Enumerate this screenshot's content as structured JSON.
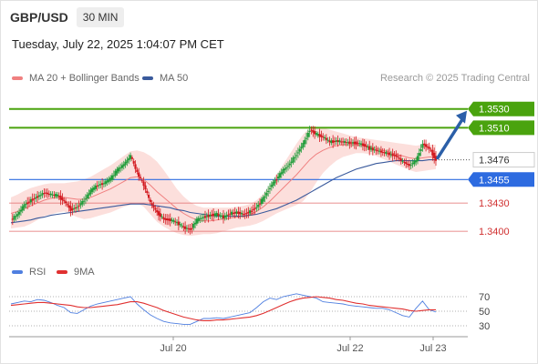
{
  "header": {
    "symbol": "GBP/USD",
    "timeframe": "30 MIN",
    "datetime": "Tuesday, July 22, 2025 1:04:07 PM CET",
    "copyright": "Research © 2025 Trading Central"
  },
  "legend": {
    "ma20_label": "MA 20 + Bollinger Bands",
    "ma50_label": "MA 50",
    "rsi_label": "RSI",
    "nine_ma_label": "9MA"
  },
  "colors": {
    "bullish": "#1f9d3a",
    "bearish": "#d2191f",
    "ma20": "#f08080",
    "bollinger_fill": "#fcd9d6",
    "ma50": "#3a5a9c",
    "resistance": "#4aa30e",
    "support_blue": "#2d6be0",
    "support_red": "#e06a6a",
    "arrow": "#2b5fa8",
    "rsi": "#4f7fe0",
    "rsi_ma": "#e03030"
  },
  "chart_data": [
    {
      "type": "candlestick",
      "title": "GBP/USD 30 MIN",
      "ylim": [
        1.3375,
        1.3552
      ],
      "x_ticks": [
        "Jul 20",
        "Jul 22",
        "Jul 23"
      ],
      "levels": [
        {
          "value": 1.353,
          "label": "1.3530",
          "style": "resistance"
        },
        {
          "value": 1.351,
          "label": "1.3510",
          "style": "resistance"
        },
        {
          "value": 1.3476,
          "label": "1.3476",
          "style": "current"
        },
        {
          "value": 1.3455,
          "label": "1.3455",
          "style": "support_blue"
        },
        {
          "value": 1.343,
          "label": "1.3430",
          "style": "support_red"
        },
        {
          "value": 1.34,
          "label": "1.3400",
          "style": "support_red"
        }
      ],
      "price_path": [
        1.3412,
        1.3418,
        1.3428,
        1.3433,
        1.3437,
        1.3441,
        1.3439,
        1.3438,
        1.3432,
        1.3423,
        1.3426,
        1.3433,
        1.3443,
        1.3449,
        1.3451,
        1.3456,
        1.3465,
        1.3471,
        1.348,
        1.3462,
        1.3449,
        1.343,
        1.342,
        1.3413,
        1.3412,
        1.3409,
        1.3404,
        1.3402,
        1.3412,
        1.3415,
        1.3417,
        1.3418,
        1.3415,
        1.3419,
        1.342,
        1.3418,
        1.3421,
        1.3426,
        1.3435,
        1.3447,
        1.3456,
        1.3465,
        1.3472,
        1.3482,
        1.3493,
        1.3508,
        1.3503,
        1.35,
        1.3495,
        1.3496,
        1.3495,
        1.3494,
        1.3494,
        1.3492,
        1.3488,
        1.3486,
        1.3484,
        1.3482,
        1.348,
        1.3474,
        1.347,
        1.3475,
        1.3493,
        1.3488,
        1.3476
      ],
      "ma20": [
        1.3419,
        1.3421,
        1.3424,
        1.3427,
        1.343,
        1.3433,
        1.3435,
        1.3436,
        1.3436,
        1.3435,
        1.3434,
        1.3434,
        1.3436,
        1.3439,
        1.3442,
        1.3445,
        1.3449,
        1.3453,
        1.3457,
        1.3458,
        1.3455,
        1.3449,
        1.3442,
        1.3436,
        1.343,
        1.3424,
        1.3419,
        1.3415,
        1.3412,
        1.3411,
        1.3411,
        1.3412,
        1.3413,
        1.3414,
        1.3415,
        1.3416,
        1.3418,
        1.3421,
        1.3426,
        1.3432,
        1.3439,
        1.3446,
        1.3453,
        1.346,
        1.3468,
        1.3476,
        1.3482,
        1.3486,
        1.3489,
        1.3491,
        1.3492,
        1.3492,
        1.3492,
        1.3491,
        1.349,
        1.3488,
        1.3486,
        1.3484,
        1.3482,
        1.348,
        1.3478,
        1.3477,
        1.3478,
        1.3479,
        1.3479
      ],
      "bollinger_upper": [
        1.3436,
        1.3439,
        1.3443,
        1.3446,
        1.3448,
        1.345,
        1.3451,
        1.3451,
        1.3451,
        1.3452,
        1.3453,
        1.3455,
        1.3458,
        1.3462,
        1.3466,
        1.347,
        1.3475,
        1.348,
        1.3485,
        1.3486,
        1.3484,
        1.348,
        1.3474,
        1.3465,
        1.3455,
        1.3445,
        1.3437,
        1.3431,
        1.3427,
        1.3425,
        1.3425,
        1.3425,
        1.3425,
        1.3425,
        1.3426,
        1.3427,
        1.3429,
        1.3433,
        1.344,
        1.3449,
        1.346,
        1.3471,
        1.3482,
        1.3493,
        1.3503,
        1.351,
        1.3511,
        1.351,
        1.3508,
        1.3506,
        1.3504,
        1.3502,
        1.35,
        1.3499,
        1.3498,
        1.3497,
        1.3496,
        1.3495,
        1.3494,
        1.3493,
        1.3492,
        1.3491,
        1.3492,
        1.3492,
        1.3492
      ],
      "bollinger_lower": [
        1.3403,
        1.3404,
        1.3405,
        1.3408,
        1.3412,
        1.3416,
        1.3418,
        1.342,
        1.3421,
        1.3418,
        1.3415,
        1.3413,
        1.3414,
        1.3416,
        1.3418,
        1.342,
        1.3423,
        1.3426,
        1.3428,
        1.343,
        1.3426,
        1.3418,
        1.341,
        1.3405,
        1.3401,
        1.3398,
        1.3396,
        1.3395,
        1.3396,
        1.3397,
        1.3397,
        1.3398,
        1.34,
        1.3402,
        1.3404,
        1.3405,
        1.3406,
        1.3408,
        1.3411,
        1.3415,
        1.3419,
        1.3422,
        1.3425,
        1.3428,
        1.3432,
        1.3441,
        1.3452,
        1.3462,
        1.3469,
        1.3475,
        1.3479,
        1.3481,
        1.3483,
        1.3483,
        1.3482,
        1.348,
        1.3477,
        1.3474,
        1.3471,
        1.3468,
        1.3465,
        1.3463,
        1.3464,
        1.3465,
        1.3466
      ],
      "ma50": [
        1.3409,
        1.341,
        1.3411,
        1.3412,
        1.3414,
        1.3415,
        1.3417,
        1.3418,
        1.3419,
        1.342,
        1.3421,
        1.3422,
        1.3423,
        1.3424,
        1.3425,
        1.3426,
        1.3427,
        1.3428,
        1.3429,
        1.3429,
        1.3429,
        1.3428,
        1.3427,
        1.3426,
        1.3425,
        1.3423,
        1.3422,
        1.342,
        1.3419,
        1.3418,
        1.3417,
        1.3416,
        1.3416,
        1.3416,
        1.3416,
        1.3416,
        1.3417,
        1.3418,
        1.342,
        1.3422,
        1.3424,
        1.3427,
        1.343,
        1.3433,
        1.3437,
        1.3441,
        1.3445,
        1.3449,
        1.3453,
        1.3457,
        1.346,
        1.3463,
        1.3466,
        1.3468,
        1.347,
        1.3472,
        1.3473,
        1.3474,
        1.3475,
        1.3475,
        1.3475,
        1.3475,
        1.3475,
        1.3476,
        1.3476
      ],
      "forecast": [
        1.3476,
        1.353
      ]
    },
    {
      "type": "line",
      "title": "RSI",
      "ylim": [
        20,
        80
      ],
      "y_ticks": [
        70,
        50,
        30
      ],
      "series": [
        {
          "name": "RSI",
          "values": [
            60,
            62,
            64,
            63,
            66,
            65,
            62,
            58,
            55,
            48,
            47,
            52,
            57,
            60,
            62,
            64,
            66,
            68,
            70,
            60,
            52,
            45,
            40,
            36,
            34,
            33,
            32,
            32,
            36,
            40,
            40,
            41,
            40,
            42,
            44,
            46,
            48,
            55,
            63,
            68,
            66,
            70,
            72,
            74,
            72,
            70,
            68,
            63,
            62,
            61,
            60,
            58,
            57,
            56,
            55,
            54,
            54,
            52,
            48,
            44,
            42,
            54,
            64,
            52,
            49
          ]
        },
        {
          "name": "9MA",
          "values": [
            58,
            59,
            60,
            61,
            62,
            62,
            61,
            60,
            59,
            58,
            56,
            55,
            55,
            56,
            57,
            58,
            59,
            61,
            63,
            63,
            61,
            58,
            55,
            51,
            48,
            45,
            42,
            40,
            38,
            37,
            37,
            38,
            38,
            39,
            40,
            41,
            42,
            44,
            47,
            51,
            55,
            59,
            63,
            66,
            68,
            69,
            70,
            69,
            68,
            66,
            65,
            63,
            61,
            60,
            58,
            57,
            56,
            55,
            54,
            53,
            51,
            50,
            51,
            52,
            52
          ]
        }
      ]
    }
  ]
}
